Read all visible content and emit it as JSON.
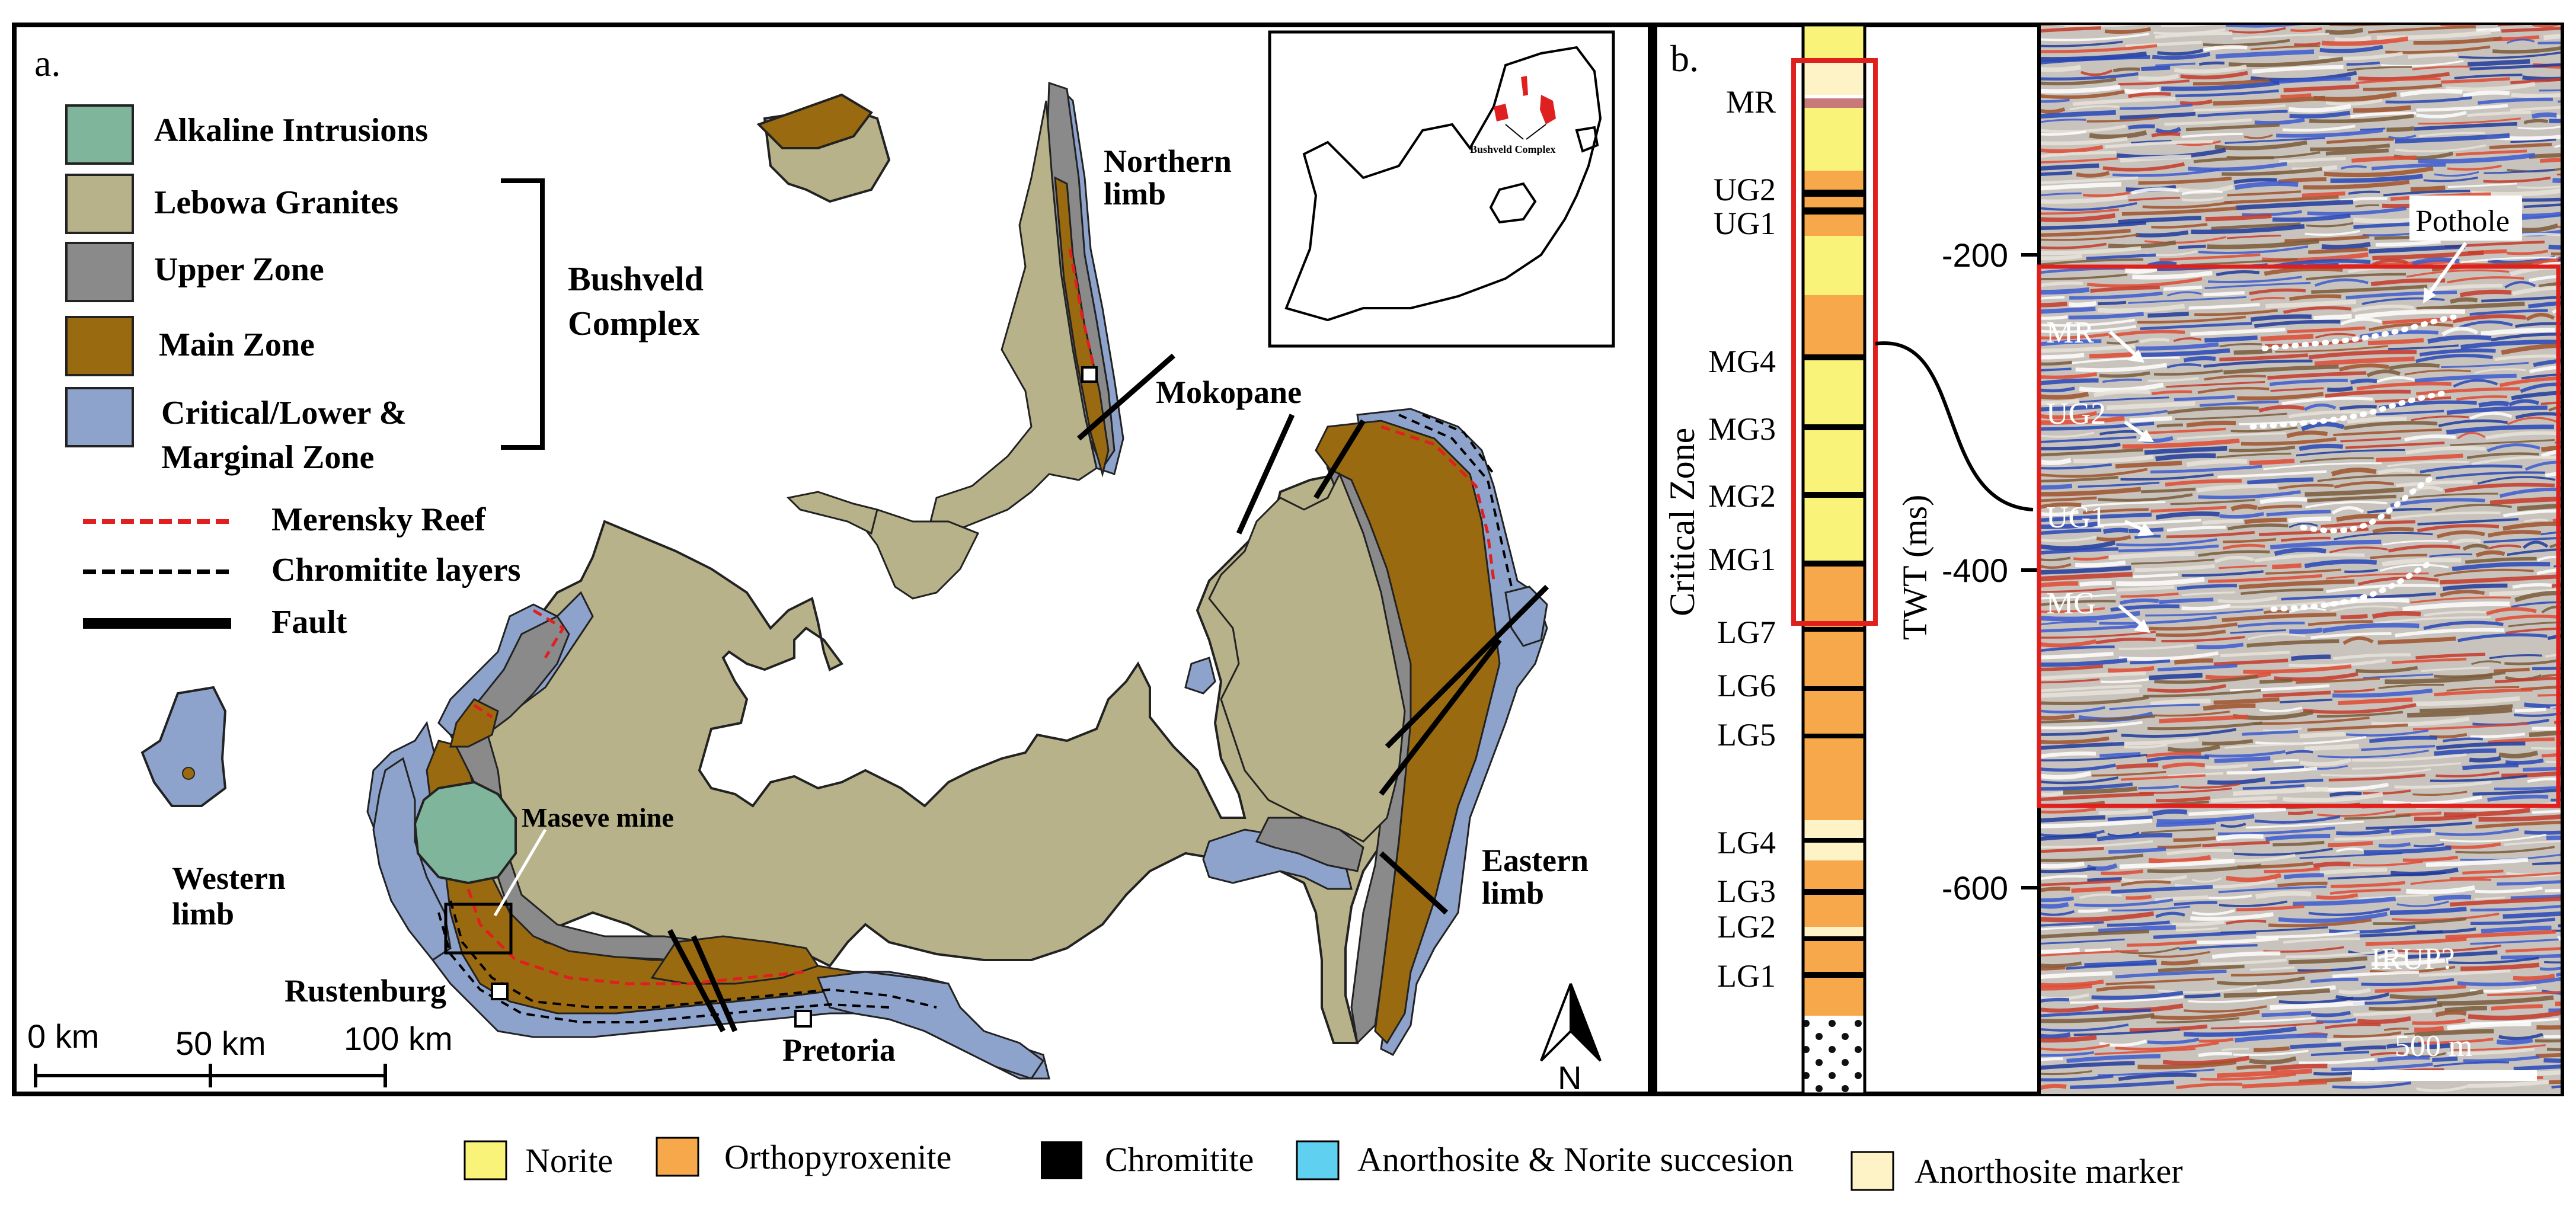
{
  "panel_a": {
    "label": "a.",
    "legend": {
      "units": [
        {
          "label": "Alkaline Intrusions",
          "color": "#7fb59b"
        },
        {
          "label": "Lebowa Granites",
          "color": "#b7b28a"
        },
        {
          "label": "Upper Zone",
          "color": "#8a8a8a"
        },
        {
          "label": "Main Zone",
          "color": "#9a6a10"
        },
        {
          "label": "Critical/Lower &",
          "label2": "Marginal  Zone",
          "color": "#8ea3cc"
        }
      ],
      "bracket_label_1": "Bushveld",
      "bracket_label_2": "Complex",
      "lines": [
        {
          "label": "Merensky Reef",
          "color": "#e02020"
        },
        {
          "label": "Chromitite layers",
          "color": "#000000"
        },
        {
          "label": "Fault",
          "color": "#000000"
        }
      ]
    },
    "place_labels": {
      "northern_1": "Northern",
      "northern_2": "limb",
      "mokopane": "Mokopane",
      "western_1": "Western",
      "western_2": "limb",
      "eastern_1": "Eastern",
      "eastern_2": "limb",
      "maseve": "Maseve mine",
      "rustenburg": "Rustenburg",
      "pretoria": "Pretoria"
    },
    "scale_bar": {
      "tick_0": "0 km",
      "tick_50": "50 km",
      "tick_100": "100 km"
    },
    "north_arrow_label": "N",
    "inset_label": "Bushveld Complex"
  },
  "panel_b": {
    "label": "b.",
    "zone_label": "Critical Zone",
    "column_layers": [
      {
        "name": "MR",
        "color": "#c87a7a"
      },
      {
        "name": "UG2",
        "color": "#000000"
      },
      {
        "name": "UG1",
        "color": "#000000"
      },
      {
        "name": "MG4",
        "color": "#000000"
      },
      {
        "name": "MG3",
        "color": "#000000"
      },
      {
        "name": "MG2",
        "color": "#000000"
      },
      {
        "name": "MG1",
        "color": "#000000"
      },
      {
        "name": "LG7",
        "color": "#000000"
      },
      {
        "name": "LG6",
        "color": "#000000"
      },
      {
        "name": "LG5",
        "color": "#000000"
      },
      {
        "name": "LG4",
        "color": "#000000"
      },
      {
        "name": "LG3",
        "color": "#000000"
      },
      {
        "name": "LG2",
        "color": "#000000"
      },
      {
        "name": "LG1",
        "color": "#000000"
      }
    ],
    "twt_axis": {
      "label": "TWT (ms)",
      "ticks": [
        "-200",
        "-400",
        "-600"
      ]
    },
    "seismic_labels": {
      "mr": "MR",
      "ug2": "UG2",
      "ug1": "UG1",
      "mg": "MG",
      "pothole": "Pothole",
      "irup": "IRUP?",
      "scale": "500 m"
    }
  },
  "bottom_legend": [
    {
      "label": "Norite",
      "color": "#f9f37a"
    },
    {
      "label": "Orthopyroxenite",
      "color": "#f7a84a"
    },
    {
      "label": "Chromitite",
      "color": "#000000"
    },
    {
      "label": "Anorthosite & Norite succesion",
      "color": "#5fd0f0"
    },
    {
      "label": "Anorthosite marker",
      "color": "#fdf3c6"
    }
  ]
}
